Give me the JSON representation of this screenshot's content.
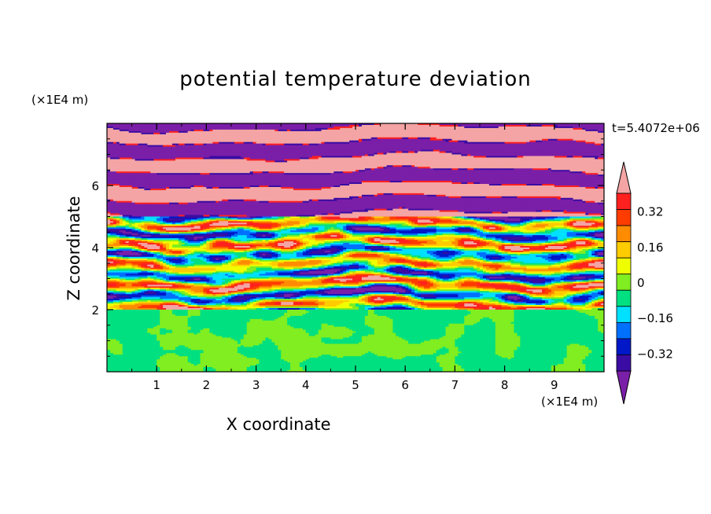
{
  "chart_data": {
    "type": "heatmap",
    "title": "potential temperature deviation",
    "xlabel": "X coordinate",
    "ylabel": "Z coordinate",
    "x_unit": "(×1E4 m)",
    "y_unit": "(×1E4 m)",
    "time_label": "t=5.4072e+06",
    "xlim": [
      0,
      10
    ],
    "ylim": [
      0,
      8
    ],
    "x_ticks": [
      "1",
      "2",
      "3",
      "4",
      "5",
      "6",
      "7",
      "8",
      "9"
    ],
    "y_ticks": [
      "2",
      "4",
      "6"
    ],
    "colorbar": {
      "levels": [
        -0.48,
        -0.4,
        -0.32,
        -0.24,
        -0.16,
        -0.08,
        0,
        0.08,
        0.16,
        0.24,
        0.32,
        0.4,
        0.48
      ],
      "tick_labels": [
        "0.32",
        "0.16",
        "0",
        "−0.16",
        "−0.32"
      ],
      "colors": [
        "#7a1fa8",
        "#3a0ca3",
        "#0018c8",
        "#0070ff",
        "#00e0ff",
        "#00e080",
        "#80ee20",
        "#f0ff00",
        "#ffcc00",
        "#ff8c00",
        "#ff3c00",
        "#ff2020",
        "#f4a4a4"
      ],
      "extend": "both"
    },
    "regions": [
      {
        "z_range": [
          0,
          2
        ],
        "description_values": [
          -0.08,
          0.0
        ]
      },
      {
        "z_range": [
          2,
          5
        ],
        "description_values": [
          -0.48,
          0.48
        ]
      },
      {
        "z_range": [
          5,
          8
        ],
        "description_values": [
          -0.48,
          0.48
        ]
      }
    ]
  }
}
